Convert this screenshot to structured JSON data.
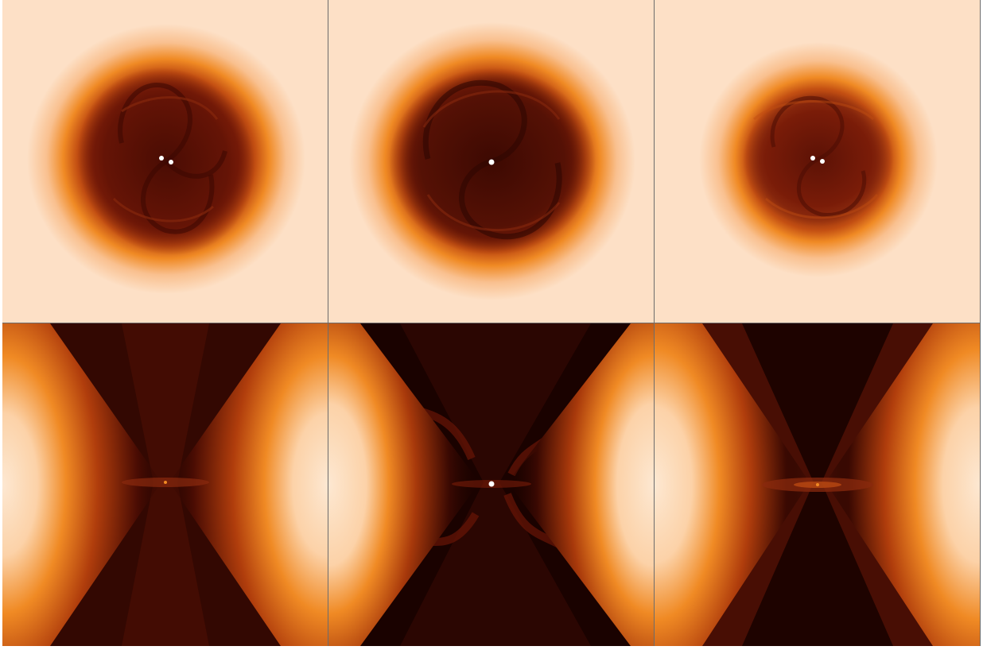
{
  "figure": {
    "rows": [
      {
        "row": "top",
        "view": "face-on",
        "panels": [
          {
            "column": 1,
            "star_markers": 2
          },
          {
            "column": 2,
            "star_markers": 1
          },
          {
            "column": 3,
            "star_markers": 2
          }
        ]
      },
      {
        "row": "bottom",
        "view": "edge-on",
        "panels": [
          {
            "column": 1,
            "star_markers": 0
          },
          {
            "column": 2,
            "star_markers": 1
          },
          {
            "column": 3,
            "star_markers": 0
          }
        ]
      }
    ],
    "colors": {
      "background_light": "#fde0c6",
      "glow_orange": "#f08a24",
      "disk_dark_red": "#5c1206",
      "void_black": "#1a0200",
      "star_white": "#ffffff"
    }
  }
}
